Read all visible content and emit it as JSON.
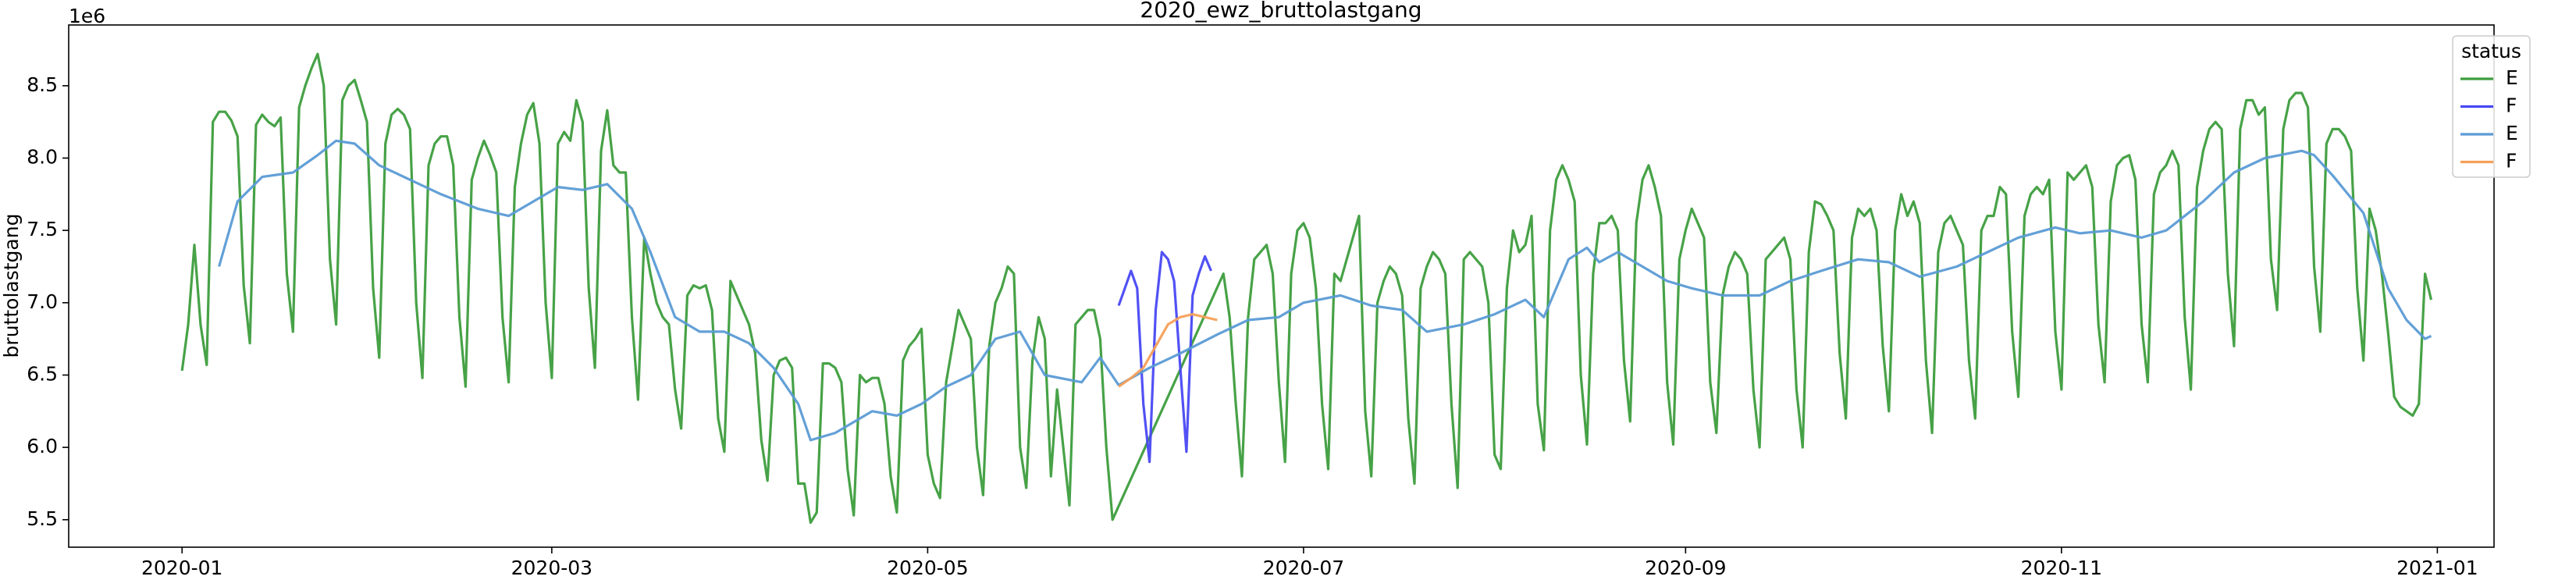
{
  "chart_data": {
    "type": "line",
    "title": "2020_ewz_bruttolastgang",
    "ylabel": "bruttolastgang",
    "y_offset_label": "1e6",
    "legend_title": "status",
    "legend": "upper right",
    "xlim": [
      -18.4,
      375.2
    ],
    "ylim": [
      5.31,
      8.92
    ],
    "xticks": [
      {
        "value": 0,
        "label": "2020-01"
      },
      {
        "value": 60,
        "label": "2020-03"
      },
      {
        "value": 121,
        "label": "2020-05"
      },
      {
        "value": 182,
        "label": "2020-07"
      },
      {
        "value": 244,
        "label": "2020-09"
      },
      {
        "value": 305,
        "label": "2020-11"
      },
      {
        "value": 366,
        "label": "2021-01"
      }
    ],
    "yticks": [
      5.5,
      {
        "value": 6,
        "label": "6.0"
      },
      6.5,
      {
        "value": 7,
        "label": "7.0"
      },
      7.5,
      {
        "value": 8,
        "label": "8.0"
      },
      8.5
    ],
    "series": [
      {
        "name": "E",
        "color": "#3d9d3d",
        "x": [
          0,
          1,
          2,
          3,
          4,
          5,
          6,
          7,
          8,
          9,
          10,
          11,
          12,
          13,
          14,
          15,
          16,
          17,
          18,
          19,
          20,
          21,
          22,
          23,
          24,
          25,
          26,
          27,
          28,
          29,
          30,
          31,
          32,
          33,
          34,
          35,
          36,
          37,
          38,
          39,
          40,
          41,
          42,
          43,
          44,
          45,
          46,
          47,
          48,
          49,
          50,
          51,
          52,
          53,
          54,
          55,
          56,
          57,
          58,
          59,
          60,
          61,
          62,
          63,
          64,
          65,
          66,
          67,
          68,
          69,
          70,
          71,
          72,
          73,
          74,
          75,
          76,
          77,
          78,
          79,
          80,
          81,
          82,
          83,
          84,
          85,
          86,
          87,
          88,
          89,
          90,
          91,
          92,
          93,
          94,
          95,
          96,
          97,
          98,
          99,
          100,
          101,
          102,
          103,
          104,
          105,
          106,
          107,
          108,
          109,
          110,
          111,
          112,
          113,
          114,
          115,
          116,
          117,
          118,
          119,
          120,
          121,
          122,
          123,
          124,
          125,
          126,
          127,
          128,
          129,
          130,
          131,
          132,
          133,
          134,
          135,
          136,
          137,
          138,
          139,
          140,
          141,
          142,
          143,
          144,
          145,
          146,
          147,
          148,
          149,
          150,
          151,
          169,
          170,
          171,
          172,
          173,
          174,
          175,
          176,
          177,
          178,
          179,
          180,
          181,
          182,
          183,
          184,
          185,
          186,
          187,
          188,
          189,
          190,
          191,
          192,
          193,
          194,
          195,
          196,
          197,
          198,
          199,
          200,
          201,
          202,
          203,
          204,
          205,
          206,
          207,
          208,
          209,
          210,
          211,
          212,
          213,
          214,
          215,
          216,
          217,
          218,
          219,
          220,
          221,
          222,
          223,
          224,
          225,
          226,
          227,
          228,
          229,
          230,
          231,
          232,
          233,
          234,
          235,
          236,
          237,
          238,
          239,
          240,
          241,
          242,
          243,
          244,
          245,
          246,
          247,
          248,
          249,
          250,
          251,
          252,
          253,
          254,
          255,
          256,
          257,
          258,
          259,
          260,
          261,
          262,
          263,
          264,
          265,
          266,
          267,
          268,
          269,
          270,
          271,
          272,
          273,
          274,
          275,
          276,
          277,
          278,
          279,
          280,
          281,
          282,
          283,
          284,
          285,
          286,
          287,
          288,
          289,
          290,
          291,
          292,
          293,
          294,
          295,
          296,
          297,
          298,
          299,
          300,
          301,
          302,
          303,
          304,
          305,
          306,
          307,
          308,
          309,
          310,
          311,
          312,
          313,
          314,
          315,
          316,
          317,
          318,
          319,
          320,
          321,
          322,
          323,
          324,
          325,
          326,
          327,
          328,
          329,
          330,
          331,
          332,
          333,
          334,
          335,
          336,
          337,
          338,
          339,
          340,
          341,
          342,
          343,
          344,
          345,
          346,
          347,
          348,
          349,
          350,
          351,
          352,
          353,
          354,
          355,
          356,
          357,
          358,
          359,
          360,
          361,
          362,
          363,
          364,
          365
        ],
        "values": [
          6.53,
          6.85,
          7.4,
          6.85,
          6.57,
          8.25,
          8.32,
          8.32,
          8.26,
          8.15,
          7.12,
          6.72,
          8.23,
          8.3,
          8.25,
          8.22,
          8.28,
          7.2,
          6.8,
          8.35,
          8.5,
          8.62,
          8.72,
          8.5,
          7.3,
          6.85,
          8.4,
          8.5,
          8.54,
          8.4,
          8.25,
          7.1,
          6.62,
          8.1,
          8.3,
          8.34,
          8.3,
          8.2,
          7.0,
          6.48,
          7.95,
          8.1,
          8.15,
          8.15,
          7.95,
          6.9,
          6.42,
          7.85,
          8.0,
          8.12,
          8.02,
          7.9,
          6.9,
          6.45,
          7.8,
          8.1,
          8.3,
          8.38,
          8.1,
          7.0,
          6.48,
          8.1,
          8.18,
          8.12,
          8.4,
          8.25,
          7.1,
          6.55,
          8.05,
          8.33,
          7.95,
          7.9,
          7.9,
          6.9,
          6.33,
          7.45,
          7.2,
          7.0,
          6.9,
          6.85,
          6.4,
          6.13,
          7.05,
          7.12,
          7.1,
          7.12,
          6.95,
          6.2,
          5.97,
          7.15,
          7.05,
          6.95,
          6.85,
          6.65,
          6.05,
          5.77,
          6.5,
          6.6,
          6.62,
          6.55,
          5.75,
          5.75,
          5.48,
          5.55,
          6.58,
          6.58,
          6.55,
          6.45,
          5.85,
          5.53,
          6.5,
          6.45,
          6.48,
          6.48,
          6.3,
          5.8,
          5.55,
          6.6,
          6.7,
          6.75,
          6.82,
          5.95,
          5.75,
          5.65,
          6.45,
          6.7,
          6.95,
          6.85,
          6.75,
          6.0,
          5.67,
          6.7,
          7.0,
          7.1,
          7.25,
          7.2,
          6.0,
          5.72,
          6.6,
          6.9,
          6.75,
          5.8,
          6.4,
          6.0,
          5.6,
          6.85,
          6.9,
          6.95,
          6.95,
          6.75,
          6.0,
          5.5,
          7.2,
          6.9,
          6.3,
          5.8,
          6.9,
          7.3,
          7.35,
          7.4,
          7.2,
          6.45,
          5.9,
          7.2,
          7.5,
          7.55,
          7.45,
          7.1,
          6.3,
          5.85,
          7.2,
          7.15,
          7.3,
          7.45,
          7.6,
          6.25,
          5.8,
          7.0,
          7.15,
          7.25,
          7.2,
          7.05,
          6.2,
          5.75,
          7.1,
          7.25,
          7.35,
          7.3,
          7.2,
          6.3,
          5.72,
          7.3,
          7.35,
          7.3,
          7.25,
          7.0,
          5.95,
          5.85,
          7.1,
          7.5,
          7.35,
          7.4,
          7.6,
          6.3,
          5.98,
          7.5,
          7.85,
          7.95,
          7.85,
          7.7,
          6.5,
          6.02,
          7.2,
          7.55,
          7.55,
          7.6,
          7.5,
          6.6,
          6.18,
          7.55,
          7.85,
          7.95,
          7.8,
          7.6,
          6.45,
          6.02,
          7.3,
          7.5,
          7.65,
          7.55,
          7.45,
          6.45,
          6.1,
          7.05,
          7.25,
          7.35,
          7.3,
          7.2,
          6.4,
          6.0,
          7.3,
          7.35,
          7.4,
          7.45,
          7.3,
          6.4,
          6.0,
          7.35,
          7.7,
          7.68,
          7.6,
          7.5,
          6.65,
          6.2,
          7.45,
          7.65,
          7.6,
          7.65,
          7.5,
          6.7,
          6.25,
          7.5,
          7.75,
          7.6,
          7.7,
          7.55,
          6.6,
          6.1,
          7.35,
          7.55,
          7.6,
          7.5,
          7.4,
          6.6,
          6.2,
          7.5,
          7.6,
          7.6,
          7.8,
          7.75,
          6.8,
          6.35,
          7.6,
          7.75,
          7.8,
          7.75,
          7.85,
          6.8,
          6.4,
          7.9,
          7.85,
          7.9,
          7.95,
          7.8,
          6.85,
          6.45,
          7.7,
          7.95,
          8.0,
          8.02,
          7.85,
          6.85,
          6.45,
          7.75,
          7.9,
          7.95,
          8.05,
          7.95,
          6.9,
          6.4,
          7.8,
          8.05,
          8.2,
          8.25,
          8.2,
          7.2,
          6.7,
          8.2,
          8.4,
          8.4,
          8.3,
          8.35,
          7.3,
          6.95,
          8.2,
          8.4,
          8.45,
          8.45,
          8.35,
          7.25,
          6.8,
          8.1,
          8.2,
          8.2,
          8.15,
          8.05,
          7.1,
          6.6,
          7.65,
          7.5,
          7.2,
          6.8,
          6.35,
          6.28,
          6.25,
          6.22,
          6.3,
          7.2,
          7.02
        ]
      },
      {
        "name": "F",
        "color": "#4848f4",
        "x": [
          152,
          153,
          154,
          155,
          156,
          157,
          158,
          159,
          160,
          161,
          162,
          163,
          164,
          165,
          166,
          167
        ],
        "values": [
          6.98,
          7.1,
          7.22,
          7.1,
          6.3,
          5.9,
          6.95,
          7.35,
          7.3,
          7.15,
          6.55,
          5.97,
          7.05,
          7.2,
          7.32,
          7.22
        ]
      },
      {
        "name": "E",
        "color": "#5b9bd5",
        "x": [
          6,
          9,
          13,
          18,
          22,
          25,
          28,
          32,
          37,
          42,
          48,
          53,
          57,
          61,
          65,
          69,
          73,
          76,
          80,
          84,
          88,
          92,
          96,
          100,
          102,
          106,
          112,
          116,
          120,
          124,
          128,
          132,
          136,
          140,
          146,
          149,
          152,
          157,
          162,
          168,
          173,
          178,
          182,
          188,
          193,
          198,
          202,
          208,
          213,
          218,
          221,
          225,
          228,
          230,
          233,
          237,
          241,
          245,
          250,
          256,
          261,
          266,
          272,
          277,
          282,
          288,
          293,
          298,
          304,
          308,
          313,
          318,
          322,
          328,
          333,
          338,
          344,
          346,
          349,
          354,
          358,
          361,
          364,
          365
        ],
        "values": [
          7.25,
          7.7,
          7.87,
          7.9,
          8.02,
          8.12,
          8.1,
          7.95,
          7.85,
          7.75,
          7.65,
          7.6,
          7.7,
          7.8,
          7.78,
          7.82,
          7.65,
          7.35,
          6.9,
          6.8,
          6.8,
          6.72,
          6.55,
          6.3,
          6.05,
          6.1,
          6.25,
          6.22,
          6.3,
          6.42,
          6.5,
          6.75,
          6.8,
          6.5,
          6.45,
          6.62,
          6.43,
          6.55,
          6.65,
          6.78,
          6.88,
          6.9,
          7.0,
          7.05,
          6.98,
          6.95,
          6.8,
          6.85,
          6.92,
          7.02,
          6.9,
          7.3,
          7.38,
          7.28,
          7.35,
          7.25,
          7.15,
          7.1,
          7.05,
          7.05,
          7.15,
          7.22,
          7.3,
          7.28,
          7.18,
          7.25,
          7.35,
          7.45,
          7.52,
          7.48,
          7.5,
          7.45,
          7.5,
          7.7,
          7.9,
          8.0,
          8.05,
          8.02,
          7.88,
          7.62,
          7.1,
          6.88,
          6.75,
          6.77
        ]
      },
      {
        "name": "F",
        "color": "#f5a05a",
        "x": [
          152,
          154,
          156,
          158,
          160,
          162,
          164,
          166,
          168
        ],
        "values": [
          6.42,
          6.48,
          6.55,
          6.7,
          6.85,
          6.9,
          6.92,
          6.9,
          6.88
        ]
      }
    ]
  }
}
